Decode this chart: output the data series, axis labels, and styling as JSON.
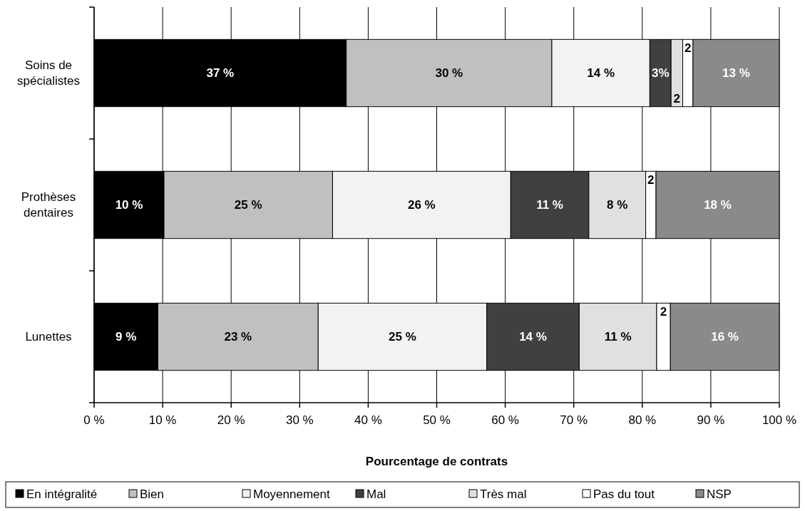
{
  "chart_data": {
    "type": "bar",
    "orientation": "horizontal",
    "stacked": true,
    "categories": [
      "Soins de spécialistes",
      "Prothèses dentaires",
      "Lunettes"
    ],
    "series": [
      {
        "name": "En intégralité",
        "color": "#000000",
        "values": [
          36.8,
          10.2,
          9.3
        ],
        "value_labels": [
          "37 %",
          "10 %",
          "9 %"
        ]
      },
      {
        "name": "Bien",
        "color": "#c0c0c0",
        "values": [
          30.0,
          24.6,
          23.4
        ],
        "value_labels": [
          "30 %",
          "25 %",
          "23 %"
        ]
      },
      {
        "name": "Moyennement",
        "color": "#f2f2f2",
        "values": [
          14.3,
          26.0,
          24.6
        ],
        "value_labels": [
          "14 %",
          "26 %",
          "25 %"
        ]
      },
      {
        "name": "Mal",
        "color": "#404040",
        "values": [
          3.1,
          11.4,
          13.5
        ],
        "value_labels": [
          "3%",
          "11 %",
          "14 %"
        ]
      },
      {
        "name": "Très mal",
        "color": "#e0e0e0",
        "values": [
          1.7,
          8.3,
          11.3
        ],
        "value_labels": [
          "2",
          "8 %",
          "11 %"
        ]
      },
      {
        "name": "Pas du tout",
        "color": "#ffffff",
        "values": [
          1.5,
          1.5,
          2.0
        ],
        "value_labels": [
          "2",
          "2",
          "2"
        ]
      },
      {
        "name": "NSP",
        "color": "#8a8a8a",
        "values": [
          12.6,
          18.0,
          15.9
        ],
        "value_labels": [
          "13 %",
          "18 %",
          "16 %"
        ]
      }
    ],
    "xlim": [
      0,
      100
    ],
    "xticks": [
      {
        "value": 0,
        "label": "0 %"
      },
      {
        "value": 10,
        "label": "10 %"
      },
      {
        "value": 20,
        "label": "20 %"
      },
      {
        "value": 30,
        "label": "30 %"
      },
      {
        "value": 40,
        "label": "40 %"
      },
      {
        "value": 50,
        "label": "50 %"
      },
      {
        "value": 60,
        "label": "60 %"
      },
      {
        "value": 70,
        "label": "70 %"
      },
      {
        "value": 80,
        "label": "80 %"
      },
      {
        "value": 90,
        "label": "90 %"
      },
      {
        "value": 100,
        "label": "100 %"
      }
    ],
    "xlabel": "Pourcentage de contrats",
    "grid": "x",
    "legend": "bottom"
  }
}
